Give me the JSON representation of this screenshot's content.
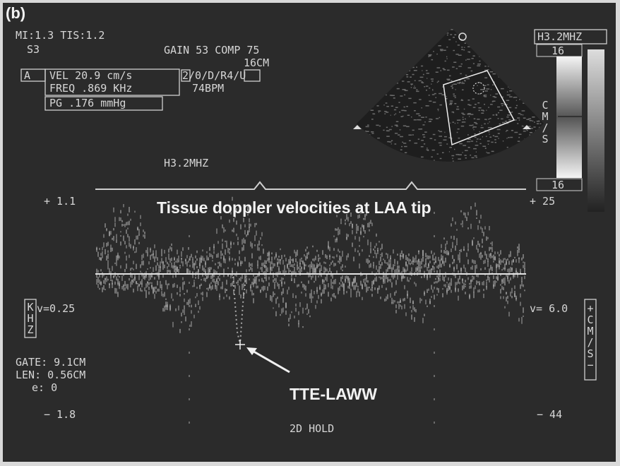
{
  "panel_label": "(b)",
  "header": {
    "mi_tis": "MI:1.3 TIS:1.2",
    "probe": "S3",
    "gain_comp": "GAIN 53 COMP 75",
    "depth": "16CM",
    "mode": "2/0/D/R4/U",
    "heart_rate": "74BPM"
  },
  "measurement": {
    "cursor": "A",
    "velocity": "VEL  20.9 cm/s",
    "frequency": "FREQ .869 KHz",
    "gradient": "PG .176 mmHg"
  },
  "scale_bar": {
    "frequency": "H3.2MHZ",
    "top": "16",
    "unit": "CM/S",
    "bottom": "16"
  },
  "doppler": {
    "frequency": "H3.2MHZ",
    "left_top": "+ 1.1",
    "right_top": "+  25",
    "left_scale": "v=0.25",
    "left_unit": "KHZ",
    "right_scale": "v= 6.0",
    "right_unit": "+CM/S−",
    "left_bottom": "− 1.8",
    "right_bottom": "−  44",
    "status": "2D HOLD"
  },
  "gate": {
    "gate": "GATE:  9.1CM",
    "length": "LEN: 0.56CM",
    "angle": "e:  0"
  },
  "annotations": {
    "title": "Tissue doppler velocities at LAA tip",
    "arrow_label": "TTE-LAWW"
  }
}
